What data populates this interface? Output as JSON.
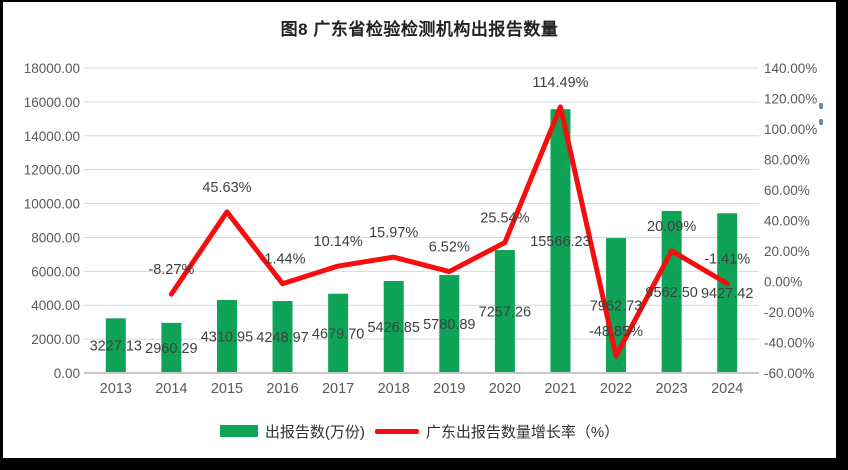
{
  "chart_data": {
    "type": "combo-bar-line",
    "title": "图8  广东省检验检测机构出报告数量",
    "categories": [
      "2013",
      "2014",
      "2015",
      "2016",
      "2017",
      "2018",
      "2019",
      "2020",
      "2021",
      "2022",
      "2023",
      "2024"
    ],
    "series": [
      {
        "name": "出报告数(万份)",
        "type": "bar",
        "color": "#0fa357",
        "axis": "left",
        "values": [
          3227.13,
          2960.29,
          4310.95,
          4248.97,
          4679.7,
          5426.85,
          5780.89,
          7257.26,
          15566.23,
          7962.73,
          9562.5,
          9427.42
        ],
        "labels": [
          "3227.13",
          "2960.29",
          "4310.95",
          "4248.97",
          "4679.70",
          "5426.85",
          "5780.89",
          "7257.26",
          "15566.23",
          "7962.73",
          "9562.50",
          "9427.42"
        ]
      },
      {
        "name": "广东出报告数量增长率（%）",
        "type": "line",
        "color": "#f60d0d",
        "axis": "right",
        "values": [
          null,
          -8.27,
          45.63,
          -1.44,
          10.14,
          15.97,
          6.52,
          25.54,
          114.49,
          -48.85,
          20.09,
          -1.41
        ],
        "labels": [
          null,
          "-8.27%",
          "45.63%",
          "-1.44%",
          "10.14%",
          "15.97%",
          "6.52%",
          "25.54%",
          "114.49%",
          "-48.85%",
          "20.09%",
          "-1.41%"
        ]
      }
    ],
    "axes": {
      "left": {
        "min": 0,
        "max": 18000,
        "step": 2000,
        "ticks": [
          "0.00",
          "2000.00",
          "4000.00",
          "6000.00",
          "8000.00",
          "10000.00",
          "12000.00",
          "14000.00",
          "16000.00",
          "18000.00"
        ]
      },
      "right": {
        "min": -60,
        "max": 140,
        "step": 20,
        "ticks": [
          "-60.00%",
          "-40.00%",
          "-20.00%",
          "0.00%",
          "20.00%",
          "40.00%",
          "60.00%",
          "80.00%",
          "100.00%",
          "120.00%",
          "140.00%"
        ]
      }
    },
    "grid": true,
    "legend_position": "bottom",
    "colors": {
      "gridline": "#d9d9d9",
      "axis_line": "#c8c8c8",
      "axis_text": "#595959",
      "data_label": "#3f3f3f"
    }
  }
}
